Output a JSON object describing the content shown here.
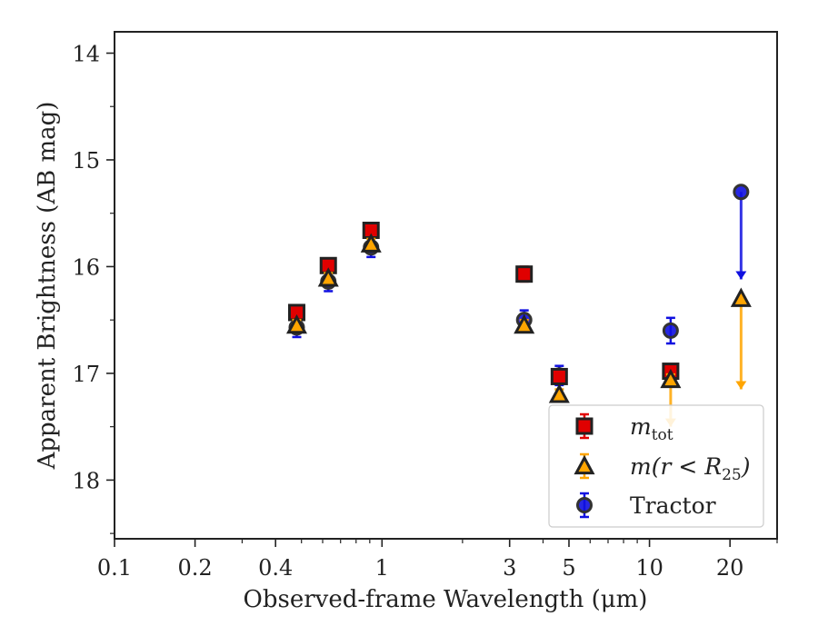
{
  "chart_data": {
    "type": "scatter",
    "title": "",
    "xlabel": "Observed-frame Wavelength (μm)",
    "ylabel": "Apparent Brightness (AB mag)",
    "x_scale": "log",
    "xlim": [
      0.1,
      30
    ],
    "ylim": [
      18.55,
      13.8
    ],
    "y_inverted": true,
    "grid": false,
    "legend_position": "lower-right",
    "x_ticks": [
      {
        "value": 0.1,
        "label": "0.1"
      },
      {
        "value": 0.2,
        "label": "0.2"
      },
      {
        "value": 0.4,
        "label": "0.4"
      },
      {
        "value": 1,
        "label": "1"
      },
      {
        "value": 3,
        "label": "3"
      },
      {
        "value": 5,
        "label": "5"
      },
      {
        "value": 10,
        "label": "10"
      },
      {
        "value": 20,
        "label": "20"
      }
    ],
    "x_minor_ticks": [
      0.3,
      0.5,
      0.6,
      0.7,
      0.8,
      0.9,
      2,
      4,
      6,
      7,
      8,
      9,
      30
    ],
    "y_ticks": [
      {
        "value": 14,
        "label": "14"
      },
      {
        "value": 15,
        "label": "15"
      },
      {
        "value": 16,
        "label": "16"
      },
      {
        "value": 17,
        "label": "17"
      },
      {
        "value": 18,
        "label": "18"
      }
    ],
    "y_minor_ticks": [
      14.5,
      15.5,
      16.5,
      17.5,
      18.5
    ],
    "series": [
      {
        "key": "mtot",
        "marker": "square",
        "color": "#e00000",
        "edge_color": "#222222",
        "points": [
          {
            "x": 0.48,
            "y": 16.43,
            "err": 0.06
          },
          {
            "x": 0.63,
            "y": 15.99,
            "err": 0.06
          },
          {
            "x": 0.91,
            "y": 15.66,
            "err": 0.06
          },
          {
            "x": 3.4,
            "y": 16.07,
            "err": 0.07
          },
          {
            "x": 4.6,
            "y": 17.03,
            "err": 0.05
          },
          {
            "x": 12.0,
            "y": 16.98,
            "err": 0.06
          }
        ]
      },
      {
        "key": "mr25",
        "marker": "triangle",
        "color": "#ffa500",
        "edge_color": "#222222",
        "points": [
          {
            "x": 0.48,
            "y": 16.55,
            "err": 0.05
          },
          {
            "x": 0.63,
            "y": 16.11,
            "err": 0.05
          },
          {
            "x": 0.91,
            "y": 15.79,
            "err": 0.05
          },
          {
            "x": 3.4,
            "y": 16.55,
            "err": 0.05
          },
          {
            "x": 4.6,
            "y": 17.2,
            "err": 0.05
          },
          {
            "x": 12.0,
            "y": 17.06,
            "err": 0.05,
            "limit_to": 17.5
          },
          {
            "x": 22.0,
            "y": 16.3,
            "err": 0,
            "limit_to": 17.15
          }
        ]
      },
      {
        "key": "tractor",
        "marker": "circle",
        "color": "#1010e0",
        "edge_color": "#333333",
        "points": [
          {
            "x": 0.48,
            "y": 16.57,
            "err": 0.09
          },
          {
            "x": 0.63,
            "y": 16.14,
            "err": 0.09
          },
          {
            "x": 0.91,
            "y": 15.82,
            "err": 0.09
          },
          {
            "x": 3.4,
            "y": 16.5,
            "err": 0.09
          },
          {
            "x": 4.6,
            "y": 17.02,
            "err": 0.09
          },
          {
            "x": 12.0,
            "y": 16.6,
            "err": 0.12
          },
          {
            "x": 22.0,
            "y": 15.3,
            "err": 0,
            "limit_to": 16.12
          }
        ]
      }
    ],
    "legend": [
      {
        "series": "mtot",
        "name_main": "m",
        "name_sub": "tot",
        "name_rest": ""
      },
      {
        "series": "mr25",
        "name_main": "m(r < R",
        "name_sub": "25",
        "name_rest": ")"
      },
      {
        "series": "tractor",
        "name_main": "Tractor",
        "name_sub": "",
        "name_rest": ""
      }
    ]
  }
}
